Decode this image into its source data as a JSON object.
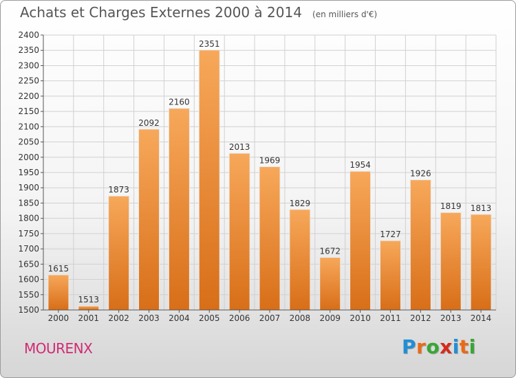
{
  "title": "Achats et Charges Externes 2000 à 2014",
  "unit": "(en milliers d'€)",
  "location": "MOURENX",
  "logo": {
    "letters": [
      "P",
      "r",
      "o",
      "x",
      "i",
      "t",
      "i"
    ],
    "colors": [
      "#1f8fd6",
      "#ea6a16",
      "#37a735",
      "#d62a1b",
      "#1f8fd6",
      "#ea6a16",
      "#37a735"
    ]
  },
  "colors": {
    "bar_top": "#f7a85a",
    "bar_bottom": "#d86e18",
    "grid": "#d0d0d0",
    "axis": "#555555",
    "text": "#333333"
  },
  "chart_data": {
    "type": "bar",
    "title": "Achats et Charges Externes 2000 à 2014",
    "subtitle": "(en milliers d'€)",
    "categories": [
      "2000",
      "2001",
      "2002",
      "2003",
      "2004",
      "2005",
      "2006",
      "2007",
      "2008",
      "2009",
      "2010",
      "2011",
      "2012",
      "2013",
      "2014"
    ],
    "values": [
      1615,
      1513,
      1873,
      2092,
      2160,
      2351,
      2013,
      1969,
      1829,
      1672,
      1954,
      1727,
      1926,
      1819,
      1813
    ],
    "ylim": [
      1500,
      2400
    ],
    "ytick_step": 50,
    "grid": true,
    "xlabel": "",
    "ylabel": ""
  }
}
